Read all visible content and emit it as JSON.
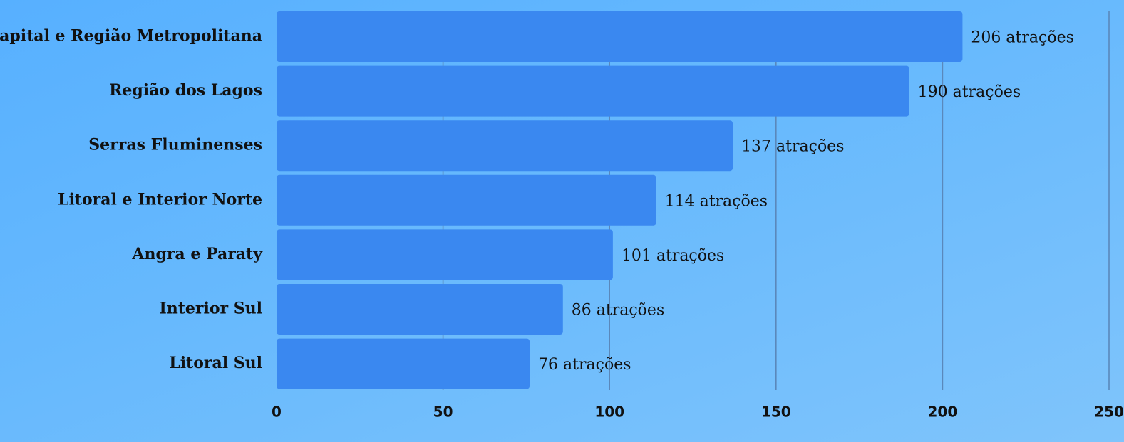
{
  "chart_data": {
    "type": "bar",
    "orientation": "horizontal",
    "categories": [
      "Capital e Região Metropolitana",
      "Região dos Lagos",
      "Serras Fluminenses",
      "Litoral e Interior Norte",
      "Angra e Paraty",
      "Interior Sul",
      "Litoral Sul"
    ],
    "values": [
      206,
      190,
      137,
      114,
      101,
      86,
      76
    ],
    "value_labels": [
      "206 atrações",
      "190 atrações",
      "137 atrações",
      "114 atrações",
      "101 atrações",
      "86 atrações",
      "76 atrações"
    ],
    "xticks": [
      0,
      50,
      100,
      150,
      200,
      250
    ],
    "xlim": [
      0,
      250
    ],
    "title": "",
    "xlabel": "",
    "ylabel": "",
    "grid": "vertical",
    "legend": "none"
  },
  "colors": {
    "bar": "#3a88f0",
    "grid": "#5a88bb",
    "text": "#111111"
  }
}
